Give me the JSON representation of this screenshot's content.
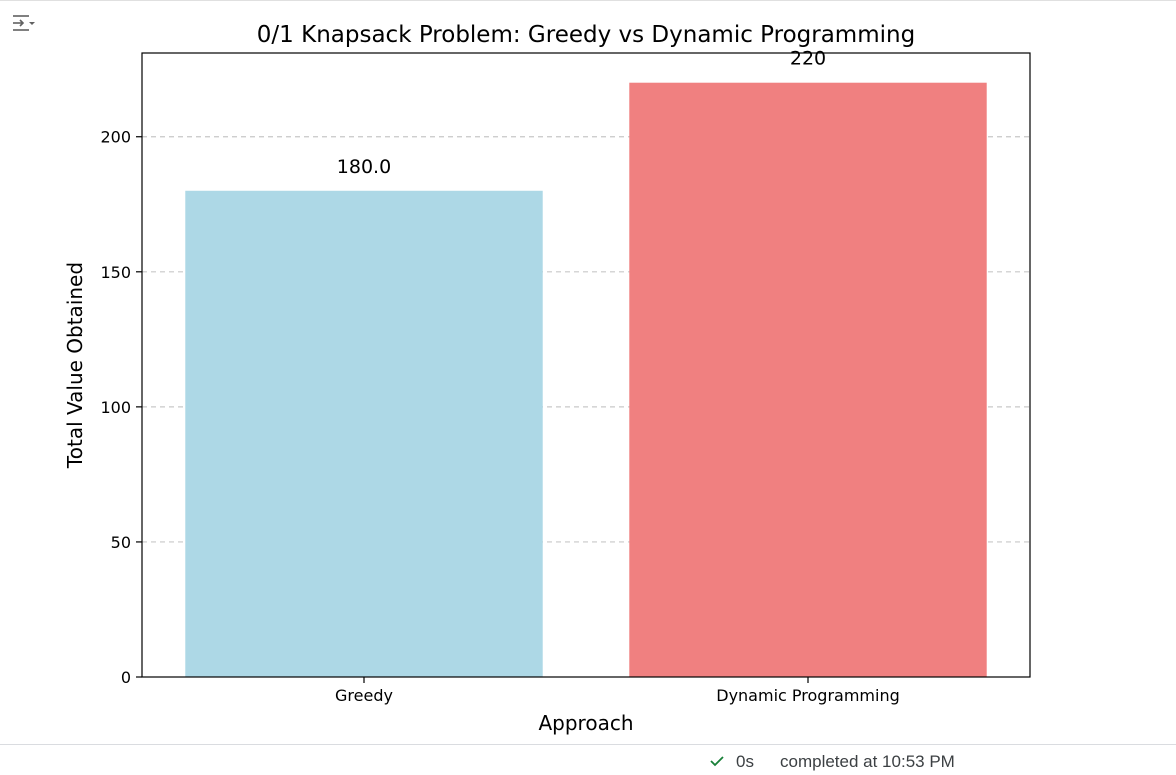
{
  "toolbar": {
    "toggle_icon": "output-collapse-icon"
  },
  "chart_data": {
    "type": "bar",
    "title": "0/1 Knapsack Problem: Greedy vs Dynamic Programming",
    "xlabel": "Approach",
    "ylabel": "Total Value Obtained",
    "categories": [
      "Greedy",
      "Dynamic Programming"
    ],
    "values": [
      180,
      220
    ],
    "value_labels": [
      "180.0",
      "220"
    ],
    "colors": [
      "#add8e6",
      "#f08080"
    ],
    "ylim": [
      0,
      231
    ],
    "yticks": [
      0,
      50,
      100,
      150,
      200
    ],
    "ytick_labels": [
      "0",
      "50",
      "100",
      "150",
      "200"
    ],
    "grid": "y-dashed",
    "legend": "none"
  },
  "status": {
    "duration": "0s",
    "text": "completed at 10:53 PM",
    "icon": "check-icon",
    "color": "#188038"
  }
}
